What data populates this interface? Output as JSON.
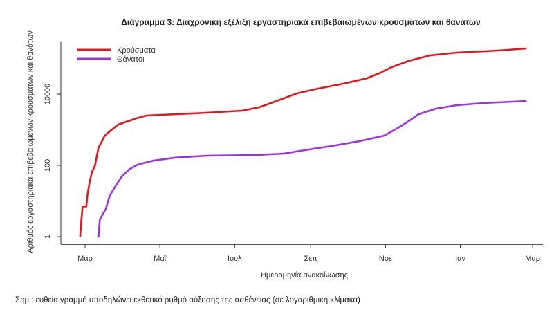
{
  "chart_data": {
    "type": "line",
    "title": "Διάγραμμα 3: Διαχρονική εξέλιξη εργαστηριακά επιβεβαιωμένων κρουσμάτων και θανάτων",
    "xlabel": "Ημερομηνία ανακοίνωσης",
    "ylabel": "Αριθμός εργαστηριακά επιβεβαιωμένων κρουσμάτων και θανάτων",
    "y_scale": "log",
    "ylim": [
      0.8,
      300000
    ],
    "y_ticks": [
      1,
      100,
      10000
    ],
    "y_tick_labels": [
      "1",
      "100",
      "10000"
    ],
    "x_ticks": [
      "2020-03-01",
      "2020-05-01",
      "2020-07-01",
      "2020-09-01",
      "2020-11-01",
      "2021-01-01",
      "2021-03-01"
    ],
    "x_tick_labels": [
      "Μαρ",
      "Μαΐ",
      "Ιουλ",
      "Σεπ",
      "Νοε",
      "Ιαν",
      "Μαρ"
    ],
    "grid": false,
    "legend_position": "top-left",
    "series": [
      {
        "name": "Κρούσματα",
        "color": "#e8141c",
        "x": [
          "2020-02-26",
          "2020-02-27",
          "2020-02-28",
          "2020-03-02",
          "2020-03-03",
          "2020-03-05",
          "2020-03-07",
          "2020-03-09",
          "2020-03-11",
          "2020-03-12",
          "2020-03-14",
          "2020-03-17",
          "2020-03-23",
          "2020-03-28",
          "2020-04-02",
          "2020-04-13",
          "2020-04-20",
          "2020-06-08",
          "2020-07-07",
          "2020-07-21",
          "2020-07-29",
          "2020-08-10",
          "2020-08-21",
          "2020-09-07",
          "2020-09-30",
          "2020-10-17",
          "2020-10-28",
          "2020-11-06",
          "2020-11-20",
          "2020-12-07",
          "2020-12-29",
          "2021-02-01",
          "2021-02-24"
        ],
        "values": [
          1,
          3,
          7,
          7,
          15,
          39,
          70,
          96,
          214,
          320,
          420,
          684,
          1020,
          1400,
          1600,
          2150,
          2500,
          2990,
          3420,
          4270,
          5350,
          7600,
          10500,
          14300,
          20400,
          28000,
          39900,
          57200,
          85400,
          122000,
          146000,
          167000,
          191000
        ]
      },
      {
        "name": "Θάνατοι",
        "color": "#9b30e8",
        "x": [
          "2020-03-11",
          "2020-03-12",
          "2020-03-13",
          "2020-03-15",
          "2020-03-18",
          "2020-03-21",
          "2020-03-26",
          "2020-03-31",
          "2020-04-06",
          "2020-04-13",
          "2020-04-26",
          "2020-05-13",
          "2020-06-08",
          "2020-07-18",
          "2020-08-10",
          "2020-08-27",
          "2020-09-18",
          "2020-10-11",
          "2020-10-31",
          "2020-11-11",
          "2020-11-20",
          "2020-11-28",
          "2020-12-12",
          "2020-12-29",
          "2021-01-20",
          "2021-02-24"
        ],
        "values": [
          1,
          1,
          3,
          4,
          6,
          14,
          27,
          49,
          77,
          105,
          137,
          164,
          187,
          195,
          214,
          267,
          350,
          478,
          684,
          1120,
          1740,
          2740,
          3900,
          4900,
          5600,
          6400
        ]
      }
    ]
  },
  "note": "Σημ.: ευθεία γραμμή υποδηλώνει εκθετικό ρυθμό αύξησης της ασθένειας (σε λογαριθμική κλίμακα)"
}
